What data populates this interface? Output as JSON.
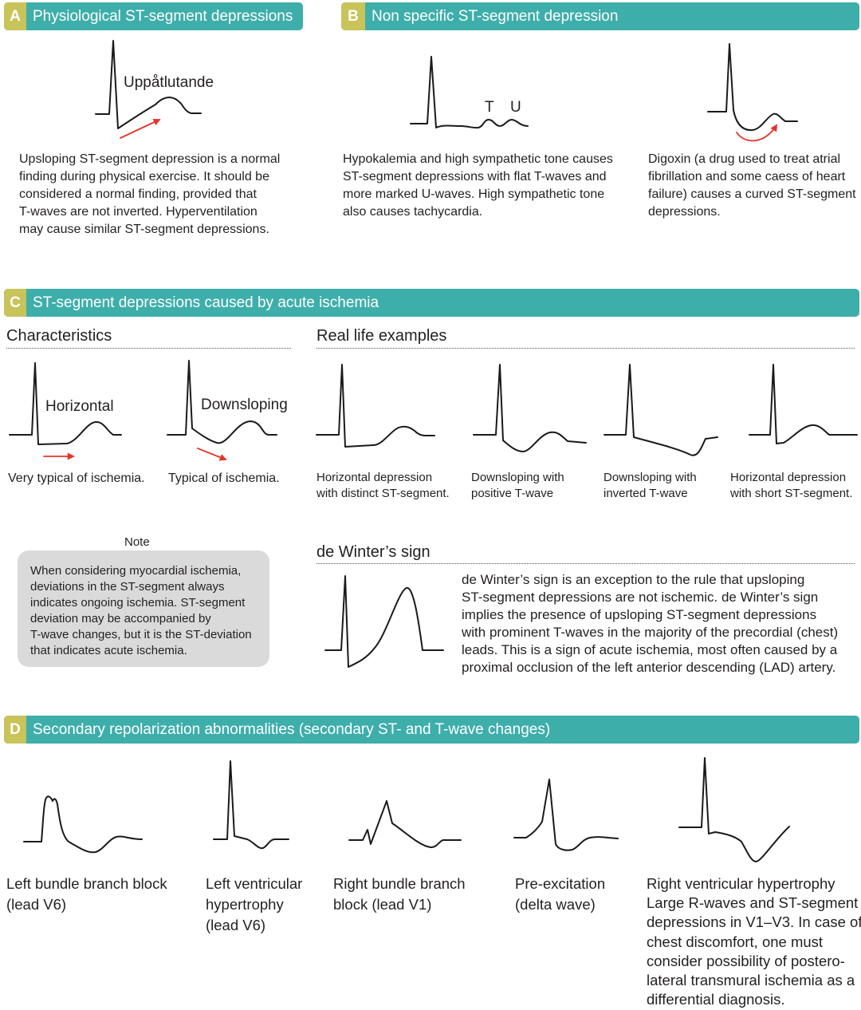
{
  "colors": {
    "header_teal": "#3eaeab",
    "letter_box": "#c8c45a",
    "arrow_red": "#e2352b",
    "note_box": "#dadada"
  },
  "section_a": {
    "letter": "A",
    "title": "Physiological ST-segment depressions",
    "figure_label": "Uppåtlutande",
    "description": [
      "Upsloping ST-segment depression is a normal",
      "finding during physical exercise. It should be",
      "considered a normal finding, provided that",
      "T-waves are not inverted. Hyperventilation",
      "may cause similar ST-segment depressions."
    ]
  },
  "section_b": {
    "letter": "B",
    "title": "Non specific ST-segment depression",
    "hypokalemia": {
      "t_label": "T",
      "u_label": "U",
      "description": [
        "Hypokalemia and high sympathetic tone causes",
        "ST-segment depressions with flat T-waves and",
        "more marked U-waves. High sympathetic tone",
        "also causes tachycardia."
      ]
    },
    "digoxin": {
      "description": [
        "Digoxin (a drug used to treat atrial",
        "fibrillation and some caess of heart",
        "failure) causes a curved ST-segment",
        "depressions."
      ]
    }
  },
  "section_c": {
    "letter": "C",
    "title": "ST-segment depressions caused by acute ischemia",
    "characteristics": {
      "heading": "Characteristics",
      "items": [
        {
          "label": "Horizontal",
          "caption": "Very typical of ischemia."
        },
        {
          "label": "Downsloping",
          "caption": "Typical of ischemia."
        }
      ]
    },
    "real_life_examples": {
      "heading": "Real life examples",
      "items": [
        {
          "caption": [
            "Horizontal depression",
            "with distinct ST-segment."
          ]
        },
        {
          "caption": [
            "Downsloping with",
            "positive T-wave"
          ]
        },
        {
          "caption": [
            "Downsloping with",
            "inverted T-wave"
          ]
        },
        {
          "caption": [
            "Horizontal depression",
            "with short ST-segment."
          ]
        }
      ]
    },
    "note": {
      "label": "Note",
      "text": [
        "When considering myocardial ischemia,",
        "deviations in the ST-segment always",
        "indicates ongoing ischemia. ST-segment",
        "deviation may be accompanied by",
        "T-wave changes, but it is the ST-deviation",
        "that indicates acute ischemia."
      ]
    },
    "de_winter": {
      "heading": "de Winter’s sign",
      "text": [
        "de Winter’s sign is an exception to the rule that upsloping",
        "ST-segment depressions are not ischemic. de Winter’s sign",
        "implies the presence of upsloping ST-segment depressions",
        "with prominent T-waves in the majority of the precordial (chest)",
        "leads. This is a sign of acute ischemia, most often caused by a",
        "proximal occlusion of the left anterior descending (LAD) artery."
      ]
    }
  },
  "section_d": {
    "letter": "D",
    "title": "Secondary repolarization abnormalities (secondary ST- and T-wave changes)",
    "items": [
      {
        "caption": [
          "Left bundle branch block",
          "(lead V6)"
        ]
      },
      {
        "caption": [
          "Left ventricular",
          "hypertrophy",
          "(lead V6)"
        ]
      },
      {
        "caption": [
          "Right bundle branch",
          "block (lead V1)"
        ]
      },
      {
        "caption": [
          "Pre-excitation",
          "(delta wave)"
        ]
      },
      {
        "caption": [
          "Right ventricular hypertrophy",
          "Large R-waves and ST-segment",
          "depressions in V1–V3. In case of",
          "chest discomfort, one must",
          "consider possibility of postero-",
          "lateral transmural ischemia as a",
          "differential diagnosis."
        ]
      }
    ]
  }
}
